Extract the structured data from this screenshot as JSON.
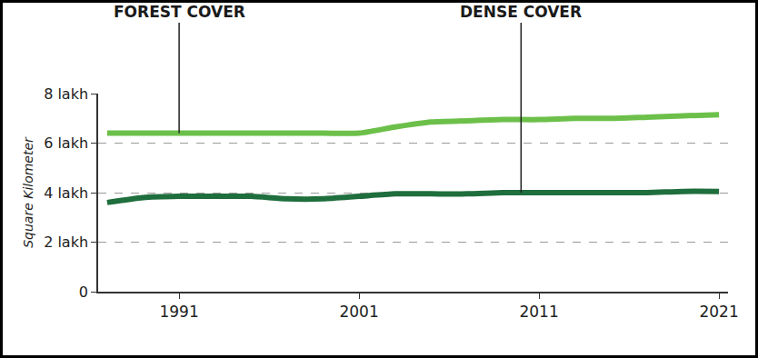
{
  "chart_data": {
    "type": "line",
    "y_label": "Square Kilometer",
    "x": [
      1987,
      1989,
      1991,
      1993,
      1995,
      1997,
      1999,
      2001,
      2003,
      2005,
      2007,
      2009,
      2011,
      2013,
      2015,
      2017,
      2019,
      2021
    ],
    "series": [
      {
        "name": "FOREST COVER",
        "color": "#6cc04a",
        "values": [
          6.4,
          6.4,
          6.4,
          6.4,
          6.4,
          6.4,
          6.4,
          6.4,
          6.65,
          6.85,
          6.9,
          6.95,
          6.95,
          7.0,
          7.0,
          7.05,
          7.1,
          7.15
        ]
      },
      {
        "name": "DENSE COVER",
        "color": "#1f6e3d",
        "values": [
          3.6,
          3.8,
          3.85,
          3.85,
          3.85,
          3.75,
          3.75,
          3.85,
          3.95,
          3.95,
          3.95,
          4.0,
          4.0,
          4.0,
          4.0,
          4.0,
          4.05,
          4.05
        ]
      }
    ],
    "annotations": [
      {
        "text": "FOREST COVER",
        "x": 1991,
        "y": 6.4
      },
      {
        "text": "DENSE COVER",
        "x": 2010,
        "y": 4.0
      }
    ],
    "xlim": [
      1986.5,
      2021.5
    ],
    "xticks": [
      1991,
      2001,
      2011,
      2021
    ],
    "ylim": [
      0,
      8
    ],
    "yticks": [
      0,
      {
        "value": 2,
        "label": "2 lakh"
      },
      {
        "value": 4,
        "label": "4 lakh"
      },
      {
        "value": 6,
        "label": "6 lakh"
      },
      {
        "value": 8,
        "label": "8 lakh"
      }
    ],
    "grid": true
  }
}
